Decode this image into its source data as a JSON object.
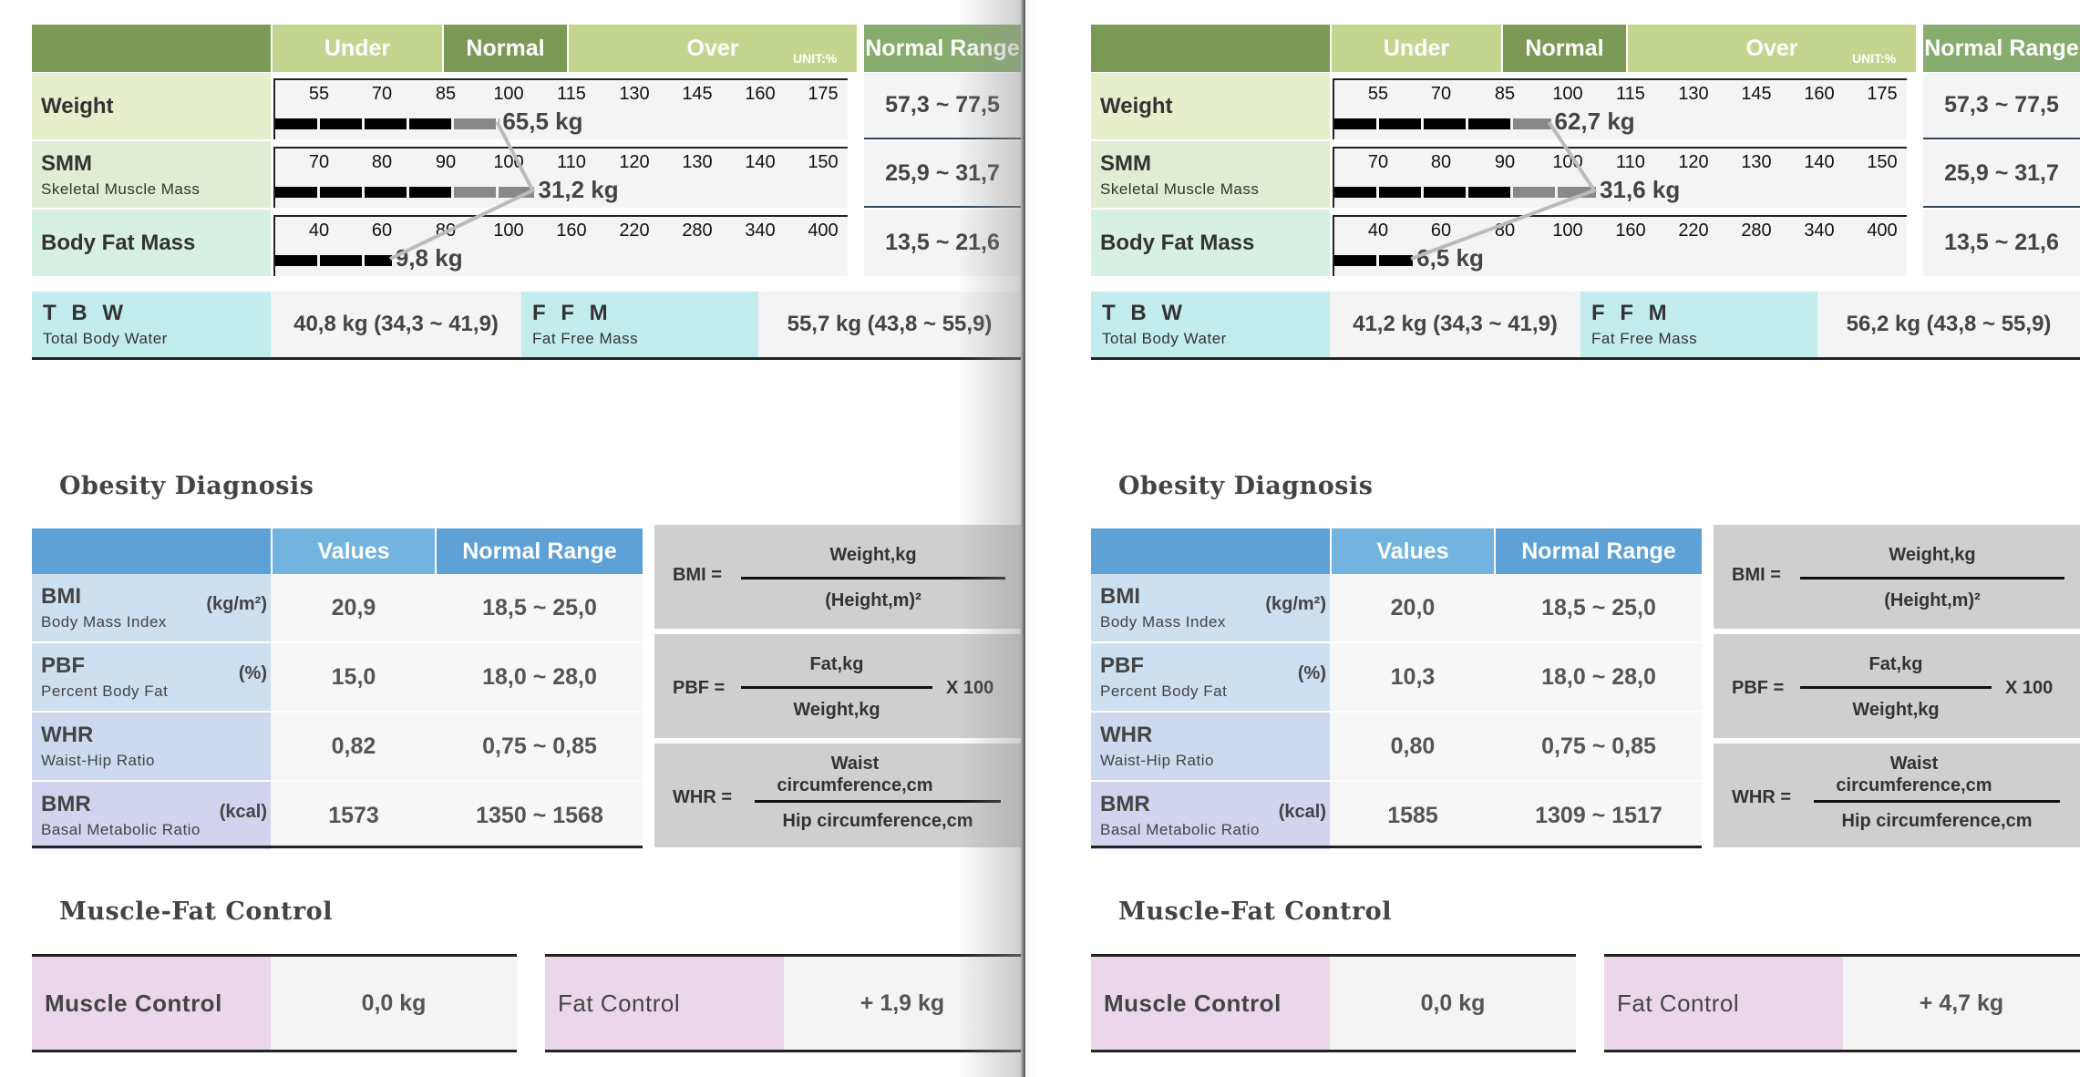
{
  "left": {
    "header": {
      "under": "Under",
      "normal": "Normal",
      "over": "Over",
      "unit": "UNIT:%",
      "normal_range": "Normal Range"
    },
    "scale_rows": [
      {
        "label": "Weight",
        "sub": "",
        "ticks": [
          "55",
          "70",
          "85",
          "100",
          "115",
          "130",
          "145",
          "160",
          "175"
        ],
        "value": "65,5 kg",
        "range": "57,3 ~ 77,5",
        "bar_pct": 94
      },
      {
        "label": "SMM",
        "sub": "Skeletal Muscle Mass",
        "ticks": [
          "70",
          "80",
          "90",
          "100",
          "110",
          "120",
          "130",
          "140",
          "150"
        ],
        "value": "31,2 kg",
        "range": "25,9 ~ 31,7",
        "bar_pct": 109
      },
      {
        "label": "Body Fat Mass",
        "sub": "",
        "ticks": [
          "40",
          "60",
          "80",
          "100",
          "160",
          "220",
          "280",
          "340",
          "400"
        ],
        "value": "9,8 kg",
        "range": "13,5 ~ 21,6",
        "bar_pct": 49
      }
    ],
    "tbw": {
      "title": "T B W",
      "sub": "Total Body Water",
      "value": "40,8 kg (34,3 ~ 41,9)"
    },
    "ffm": {
      "title": "F F M",
      "sub": "Fat Free Mass",
      "value": "55,7 kg (43,8 ~ 55,9)"
    },
    "obesity": {
      "title": "Obesity Diagnosis",
      "headers": {
        "values": "Values",
        "normal_range": "Normal Range"
      },
      "rows": [
        {
          "label": "BMI",
          "sub": "Body Mass Index",
          "unit": "(kg/m²)",
          "value": "20,9",
          "range": "18,5 ~ 25,0"
        },
        {
          "label": "PBF",
          "sub": "Percent Body Fat",
          "unit": "(%)",
          "value": "15,0",
          "range": "18,0 ~ 28,0"
        },
        {
          "label": "WHR",
          "sub": "Waist-Hip Ratio",
          "unit": "",
          "value": "0,82",
          "range": "0,75 ~ 0,85"
        },
        {
          "label": "BMR",
          "sub": "Basal Metabolic Ratio",
          "unit": "(kcal)",
          "value": "1573",
          "range": "1350 ~ 1568"
        }
      ]
    },
    "muscle_fat": {
      "title": "Muscle-Fat Control",
      "muscle_label": "Muscle Control",
      "muscle_value": "0,0 kg",
      "fat_label": "Fat Control",
      "fat_value": "+ 1,9 kg"
    }
  },
  "right": {
    "header": {
      "under": "Under",
      "normal": "Normal",
      "over": "Over",
      "unit": "UNIT:%",
      "normal_range": "Normal Range"
    },
    "scale_rows": [
      {
        "label": "Weight",
        "sub": "",
        "ticks": [
          "55",
          "70",
          "85",
          "100",
          "115",
          "130",
          "145",
          "160",
          "175"
        ],
        "value": "62,7 kg",
        "range": "57,3 ~ 77,5",
        "bar_pct": 91
      },
      {
        "label": "SMM",
        "sub": "Skeletal Muscle Mass",
        "ticks": [
          "70",
          "80",
          "90",
          "100",
          "110",
          "120",
          "130",
          "140",
          "150"
        ],
        "value": "31,6 kg",
        "range": "25,9 ~ 31,7",
        "bar_pct": 110
      },
      {
        "label": "Body Fat Mass",
        "sub": "",
        "ticks": [
          "40",
          "60",
          "80",
          "100",
          "160",
          "220",
          "280",
          "340",
          "400"
        ],
        "value": "6,5 kg",
        "range": "13,5 ~ 21,6",
        "bar_pct": 33
      }
    ],
    "tbw": {
      "title": "T B W",
      "sub": "Total Body Water",
      "value": "41,2 kg (34,3 ~ 41,9)"
    },
    "ffm": {
      "title": "F F M",
      "sub": "Fat Free Mass",
      "value": "56,2 kg (43,8 ~ 55,9)"
    },
    "obesity": {
      "title": "Obesity Diagnosis",
      "headers": {
        "values": "Values",
        "normal_range": "Normal Range"
      },
      "rows": [
        {
          "label": "BMI",
          "sub": "Body Mass Index",
          "unit": "(kg/m²)",
          "value": "20,0",
          "range": "18,5 ~ 25,0"
        },
        {
          "label": "PBF",
          "sub": "Percent Body Fat",
          "unit": "(%)",
          "value": "10,3",
          "range": "18,0 ~ 28,0"
        },
        {
          "label": "WHR",
          "sub": "Waist-Hip Ratio",
          "unit": "",
          "value": "0,80",
          "range": "0,75 ~ 0,85"
        },
        {
          "label": "BMR",
          "sub": "Basal Metabolic Ratio",
          "unit": "(kcal)",
          "value": "1585",
          "range": "1309 ~ 1517"
        }
      ]
    },
    "muscle_fat": {
      "title": "Muscle-Fat Control",
      "muscle_label": "Muscle Control",
      "muscle_value": "0,0 kg",
      "fat_label": "Fat Control",
      "fat_value": "+ 4,7 kg"
    }
  },
  "formulas": {
    "bmi": {
      "label": "BMI =",
      "num": "Weight,kg",
      "den": "(Height,m)²"
    },
    "pbf": {
      "label": "PBF =",
      "num": "Fat,kg",
      "den": "Weight,kg",
      "suffix": "X 100"
    },
    "whr": {
      "label": "WHR =",
      "num": "Waist circumference,cm",
      "den": "Hip circumference,cm"
    }
  }
}
